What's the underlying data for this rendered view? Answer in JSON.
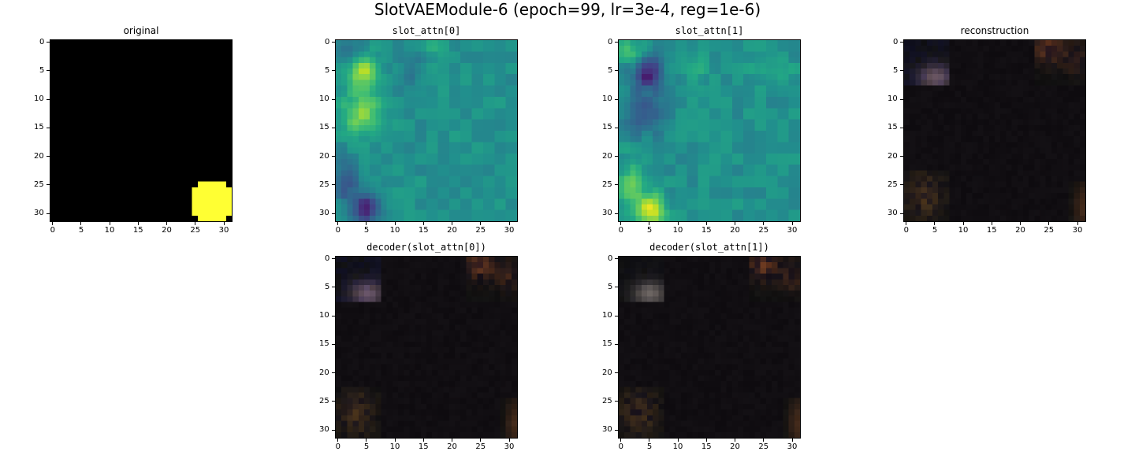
{
  "figure": {
    "suptitle": "SlotVAEModule-6 (epoch=99, lr=3e-4, reg=1e-6)"
  },
  "chart_data": [
    {
      "type": "heatmap",
      "title": "original",
      "grid_size": 32,
      "xticks": [
        "0",
        "5",
        "10",
        "15",
        "20",
        "25",
        "30"
      ],
      "yticks": [
        "0",
        "5",
        "10",
        "15",
        "20",
        "25",
        "30"
      ],
      "xlim": [
        -0.5,
        31.5
      ],
      "ylim": [
        31.5,
        -0.5
      ],
      "content": "black image with a yellow disk near the bottom-right",
      "blob": {
        "cx": 28,
        "cy": 28,
        "r": 3.8,
        "color": "#ffff33"
      }
    },
    {
      "type": "heatmap",
      "title": "slot_attn[0]",
      "grid_size": 32,
      "colormap": "viridis",
      "xticks": [
        "0",
        "5",
        "10",
        "15",
        "20",
        "25",
        "30"
      ],
      "yticks": [
        "0",
        "5",
        "10",
        "15",
        "20",
        "25",
        "30"
      ],
      "xlim": [
        -0.5,
        31.5
      ],
      "ylim": [
        31.5,
        -0.5
      ]
    },
    {
      "type": "heatmap",
      "title": "slot_attn[1]",
      "grid_size": 32,
      "colormap": "viridis",
      "xticks": [
        "0",
        "5",
        "10",
        "15",
        "20",
        "25",
        "30"
      ],
      "yticks": [
        "0",
        "5",
        "10",
        "15",
        "20",
        "25",
        "30"
      ],
      "xlim": [
        -0.5,
        31.5
      ],
      "ylim": [
        31.5,
        -0.5
      ]
    },
    {
      "type": "heatmap",
      "title": "reconstruction",
      "grid_size": 32,
      "xticks": [
        "0",
        "5",
        "10",
        "15",
        "20",
        "25",
        "30"
      ],
      "yticks": [
        "0",
        "5",
        "10",
        "15",
        "20",
        "25",
        "30"
      ],
      "xlim": [
        -0.5,
        31.5
      ],
      "ylim": [
        31.5,
        -0.5
      ]
    },
    {
      "type": "heatmap",
      "title": "decoder(slot_attn[0])",
      "grid_size": 32,
      "xticks": [
        "0",
        "5",
        "10",
        "15",
        "20",
        "25",
        "30"
      ],
      "yticks": [
        "0",
        "5",
        "10",
        "15",
        "20",
        "25",
        "30"
      ],
      "xlim": [
        -0.5,
        31.5
      ],
      "ylim": [
        31.5,
        -0.5
      ]
    },
    {
      "type": "heatmap",
      "title": "decoder(slot_attn[1])",
      "grid_size": 32,
      "xticks": [
        "0",
        "5",
        "10",
        "15",
        "20",
        "25",
        "30"
      ],
      "yticks": [
        "0",
        "5",
        "10",
        "15",
        "20",
        "25",
        "30"
      ],
      "xlim": [
        -0.5,
        31.5
      ],
      "ylim": [
        31.5,
        -0.5
      ]
    }
  ]
}
